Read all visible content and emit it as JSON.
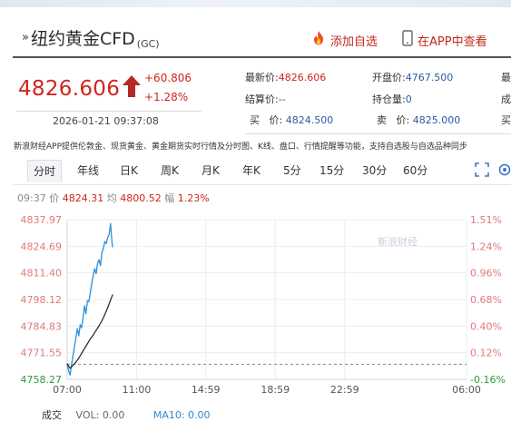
{
  "header": {
    "title_mark": "»",
    "title": "纽约黄金CFD",
    "code": "(GC)",
    "watch_label": "添加自选",
    "app_label": "在APP中查看"
  },
  "quote": {
    "price": "4826.606",
    "change": "+60.806",
    "change_pct": "+1.28%",
    "time": "2026-01-21 09:37:08"
  },
  "stats": {
    "latest_label": "最新价:",
    "latest_value": "4826.606",
    "open_label": "开盘价:",
    "open_value": "4767.500",
    "settle_label": "结算价:",
    "settle_value": "--",
    "oi_label": "持仓量:",
    "oi_value": "0",
    "bid_label": "买",
    "bid_sep": "价:",
    "bid_value": "4824.500",
    "ask_label": "卖",
    "ask_sep": "价:",
    "ask_value": "4825.000",
    "col3_row1": "最",
    "col3_row2": "成",
    "col3_row3": "买"
  },
  "notice": "新浪财经APP提供伦敦金、现货黄金、黄金期货实时行情及分时图、K线、盘口、行情提醒等功能，支持自选股与自选品种同步",
  "tabs": [
    "分时",
    "年线",
    "日K",
    "周K",
    "月K",
    "年K",
    "5分",
    "15分",
    "30分",
    "60分"
  ],
  "active_tab": "分时",
  "info_line": {
    "time": "09:37",
    "price_label": "价",
    "price": "4824.31",
    "avg_label": "均",
    "avg": "4800.52",
    "amp_label": "幅",
    "amp": "1.23%"
  },
  "watermark": "新浪财经",
  "chart_data": {
    "type": "line",
    "y_ticks_left": [
      "4837.97",
      "4824.69",
      "4811.40",
      "4798.12",
      "4784.83",
      "4771.55",
      "4758.27"
    ],
    "y_ticks_right": [
      "1.51%",
      "1.24%",
      "0.96%",
      "0.68%",
      "0.40%",
      "0.12%",
      "-0.16%"
    ],
    "x_ticks": [
      "07:00",
      "11:00",
      "14:59",
      "18:59",
      "22:59",
      "06:00"
    ],
    "ylim": [
      4758.27,
      4837.97
    ],
    "prev_close": 4765.8,
    "series": [
      {
        "name": "价",
        "color": "#2d8fd9",
        "x": [
          "07:00",
          "07:05",
          "07:10",
          "07:15",
          "07:20",
          "07:25",
          "07:30",
          "07:35",
          "07:40",
          "07:45",
          "07:50",
          "07:55",
          "08:00",
          "08:05",
          "08:10",
          "08:15",
          "08:20",
          "08:25",
          "08:30",
          "08:35",
          "08:40",
          "08:45",
          "08:50",
          "08:55",
          "09:00",
          "09:05",
          "09:10",
          "09:15",
          "09:20",
          "09:25",
          "09:30",
          "09:35",
          "09:37"
        ],
        "values": [
          4766.0,
          4762.5,
          4760.5,
          4765.5,
          4770.0,
          4774.5,
          4779.0,
          4783.5,
          4780.0,
          4785.5,
          4784.0,
          4789.0,
          4795.0,
          4791.0,
          4797.5,
          4797.0,
          4801.5,
          4806.0,
          4810.0,
          4813.5,
          4811.0,
          4816.0,
          4818.0,
          4815.0,
          4821.5,
          4823.5,
          4827.0,
          4826.0,
          4829.0,
          4830.5,
          4836.0,
          4826.5,
          4824.31
        ]
      },
      {
        "name": "均",
        "color": "#222222",
        "x": [
          "07:00",
          "07:10",
          "07:20",
          "07:30",
          "07:40",
          "07:50",
          "08:00",
          "08:10",
          "08:20",
          "08:30",
          "08:40",
          "08:50",
          "09:00",
          "09:10",
          "09:20",
          "09:30",
          "09:37"
        ],
        "values": [
          4766.0,
          4763.8,
          4765.2,
          4766.8,
          4768.9,
          4771.2,
          4773.6,
          4776.0,
          4778.4,
          4780.4,
          4782.7,
          4785.0,
          4787.5,
          4790.5,
          4794.0,
          4797.8,
          4800.52
        ]
      }
    ]
  },
  "footer": {
    "label": "成交",
    "vol": "VOL: 0.00",
    "ma10": "MA10: 0.00"
  },
  "colors": {
    "up_red": "#d0241c",
    "price_line": "#2d8fd9",
    "avg_line": "#222222",
    "grid": "#e9eef5",
    "prevclose_dash": "#888888",
    "axis_green": "#2f9c3a"
  }
}
